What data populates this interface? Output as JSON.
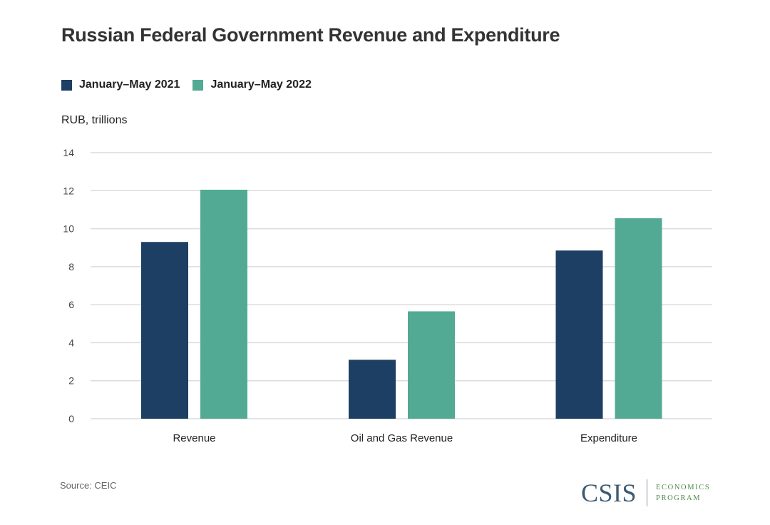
{
  "chart_data": {
    "type": "bar",
    "title": "Russian Federal Government Revenue and Expenditure",
    "ylabel": "RUB, trillions",
    "xlabel": "",
    "categories": [
      "Revenue",
      "Oil and Gas Revenue",
      "Expenditure"
    ],
    "series": [
      {
        "name": "January–May 2021",
        "color": "#1d3f63",
        "values": [
          9.3,
          3.1,
          8.85
        ]
      },
      {
        "name": "January–May 2022",
        "color": "#52aa94",
        "values": [
          12.05,
          5.65,
          10.55
        ]
      }
    ],
    "ylim": [
      0,
      14
    ],
    "yticks": [
      0,
      2,
      4,
      6,
      8,
      10,
      12,
      14
    ],
    "grid": true,
    "legend_position": "top-left"
  },
  "footer": {
    "source": "Source: CEIC",
    "logo_main": "CSIS",
    "logo_sub_line1": "ECONOMICS",
    "logo_sub_line2": "PROGRAM"
  },
  "colors": {
    "gridline": "#dcdcdc",
    "tick_text": "#444444"
  }
}
